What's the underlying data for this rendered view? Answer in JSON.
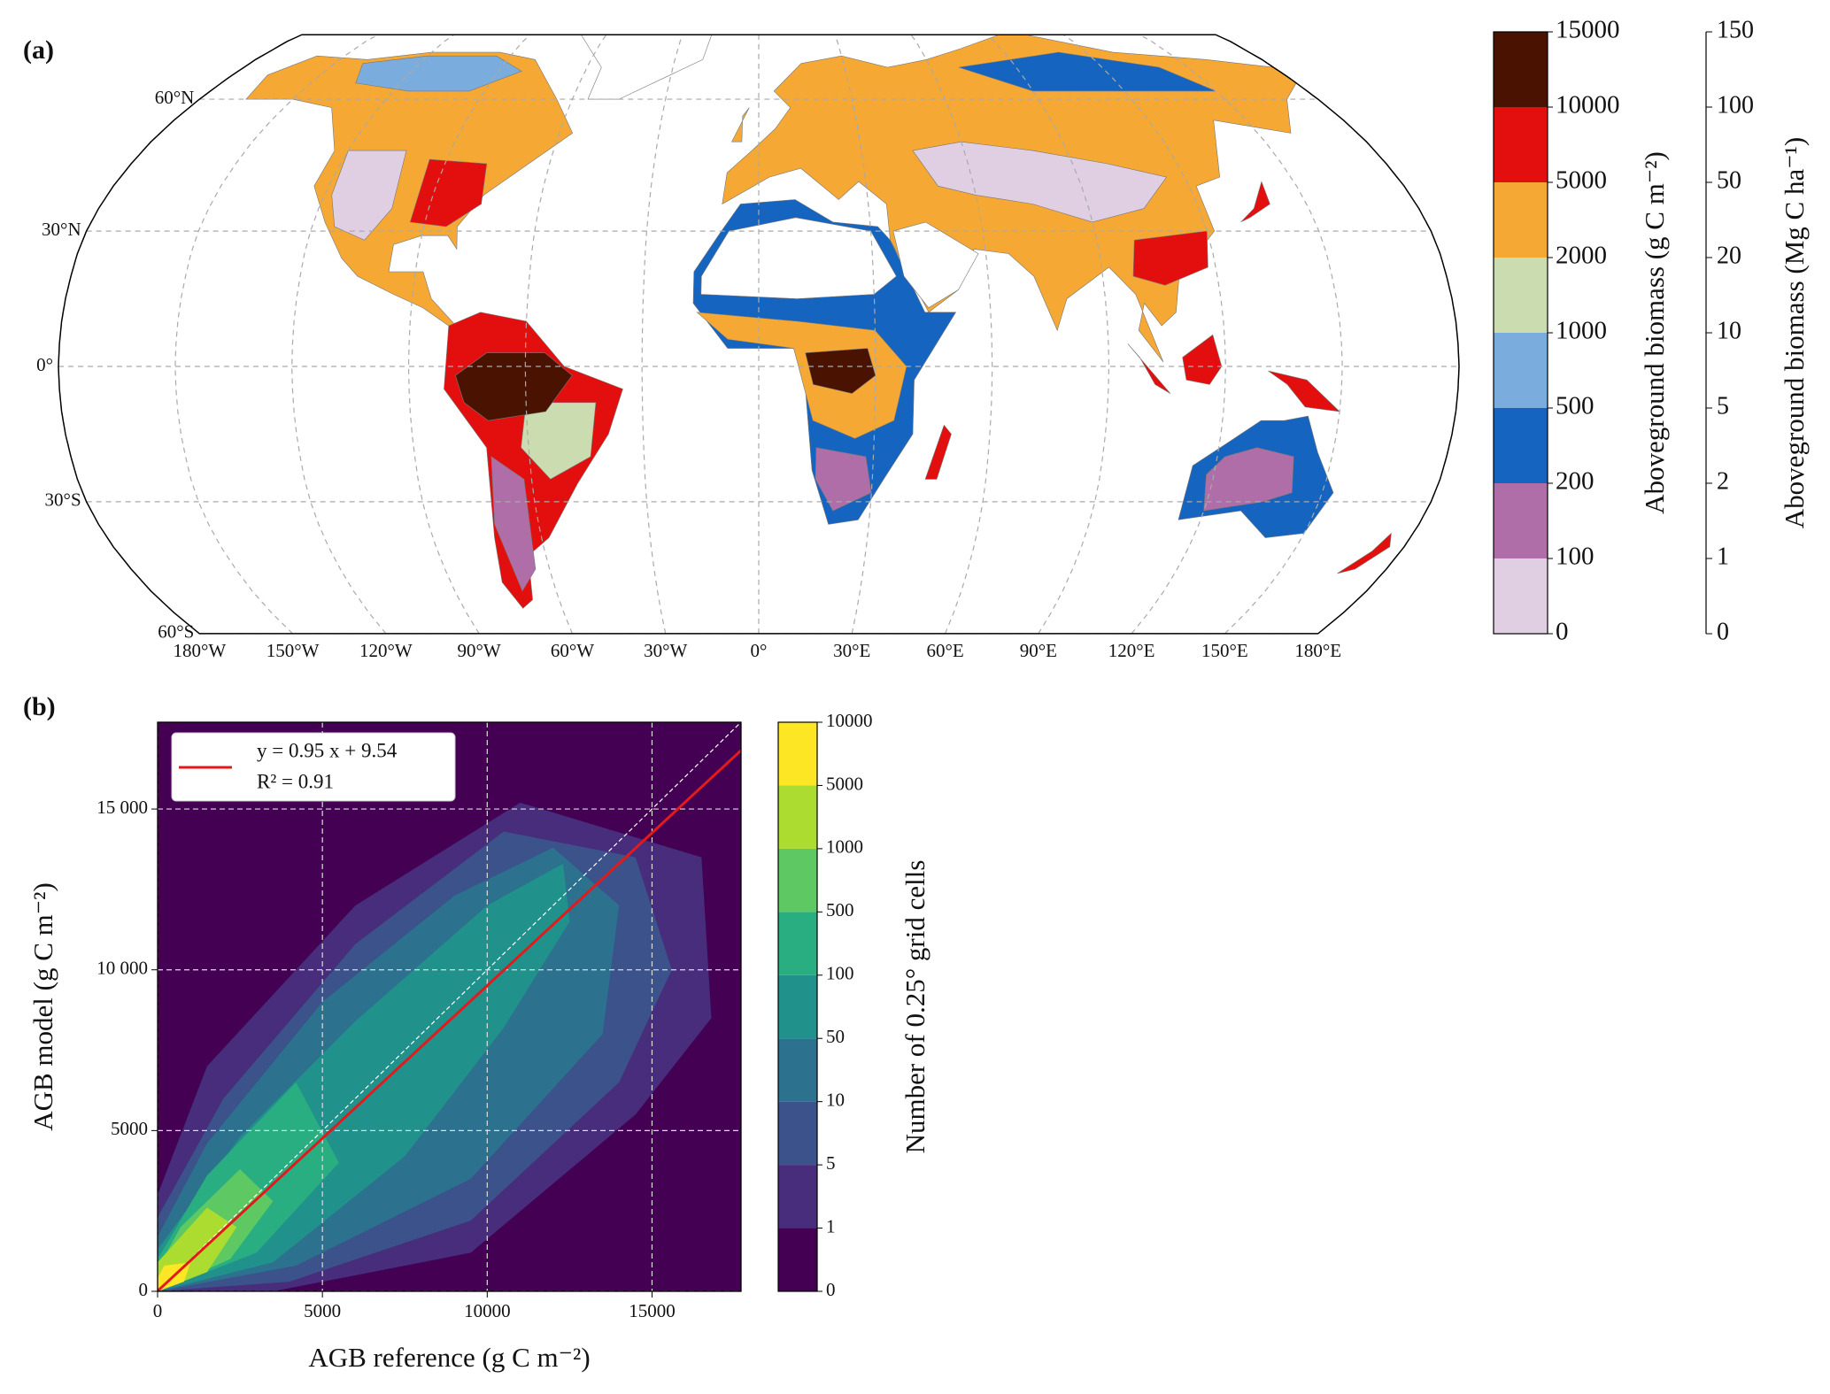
{
  "panel_a": {
    "label": "(a)",
    "lat_ticks": [
      {
        "value": 60,
        "label": "60°N"
      },
      {
        "value": 30,
        "label": "30°N"
      },
      {
        "value": 0,
        "label": "0°"
      },
      {
        "value": -30,
        "label": "30°S"
      },
      {
        "value": -60,
        "label": "60°S"
      }
    ],
    "lon_ticks": [
      {
        "value": -180,
        "label": "180°W"
      },
      {
        "value": -150,
        "label": "150°W"
      },
      {
        "value": -120,
        "label": "120°W"
      },
      {
        "value": -90,
        "label": "90°W"
      },
      {
        "value": -60,
        "label": "60°W"
      },
      {
        "value": -30,
        "label": "30°W"
      },
      {
        "value": 0,
        "label": "0°"
      },
      {
        "value": 30,
        "label": "30°E"
      },
      {
        "value": 60,
        "label": "60°E"
      },
      {
        "value": 90,
        "label": "90°E"
      },
      {
        "value": 120,
        "label": "120°E"
      },
      {
        "value": 150,
        "label": "150°E"
      },
      {
        "value": 180,
        "label": "180°E"
      }
    ],
    "colorbar": {
      "label": "Aboveground biomass (g C m⁻²)",
      "bounds": [
        0,
        100,
        200,
        500,
        1000,
        2000,
        5000,
        10000,
        15000
      ],
      "colors": [
        "#e0cfe3",
        "#b06ea8",
        "#1565c0",
        "#7aaddd",
        "#cbdcb0",
        "#f5a833",
        "#e30f0f",
        "#4a1200"
      ],
      "label2": "Aboveground biomass (Mg C ha⁻¹)",
      "bounds2": [
        0,
        1,
        2,
        5,
        10,
        20,
        50,
        100,
        150
      ]
    }
  },
  "chart_data": {
    "type": "hist2d",
    "label": "(b)",
    "xlabel": "AGB reference (g C m⁻²)",
    "ylabel": "AGB model (g C m⁻²)",
    "xlim": [
      0,
      17700
    ],
    "ylim": [
      0,
      17700
    ],
    "xticks": [
      0,
      5000,
      10000,
      15000
    ],
    "yticks": [
      0,
      5000,
      {
        "value": 10000,
        "label": "10 000"
      },
      {
        "value": 15000,
        "label": "15 000"
      }
    ],
    "grid": true,
    "fit": {
      "label": "y = 0.95 x + 9.54",
      "slope": 0.95,
      "intercept": 9.54,
      "color": "#e31a1c"
    },
    "r2_label": "R² = 0.91",
    "colorbar": {
      "label": "Number of 0.25° grid cells",
      "bounds": [
        0,
        1,
        5,
        10,
        50,
        100,
        500,
        1000,
        5000,
        10000
      ],
      "colors": [
        "#440154",
        "#472d7b",
        "#3b528b",
        "#2c728e",
        "#21918c",
        "#28ae80",
        "#5ec962",
        "#addc30",
        "#fde725"
      ]
    }
  }
}
